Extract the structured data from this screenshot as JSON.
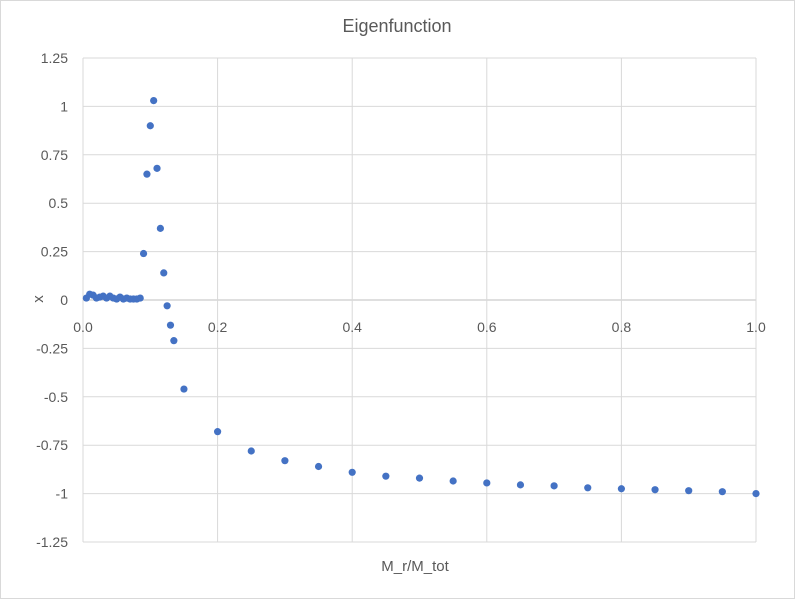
{
  "chart_data": {
    "type": "scatter",
    "title": "Eigenfunction",
    "xlabel": "M_r/M_tot",
    "ylabel": "x",
    "xlim": [
      0,
      1
    ],
    "ylim": [
      -1.25,
      1.25
    ],
    "x_ticks": [
      0,
      0.2,
      0.4,
      0.6,
      0.8,
      1.0
    ],
    "x_tick_labels": [
      "0.0",
      "0.2",
      "0.4",
      "0.6",
      "0.8",
      "1.0"
    ],
    "y_ticks": [
      1.25,
      1,
      0.75,
      0.5,
      0.25,
      0,
      -0.25,
      -0.5,
      -0.75,
      -1,
      -1.25
    ],
    "y_tick_labels": [
      "1.25",
      "1",
      "0.75",
      "0.5",
      "0.25",
      "0",
      "-0.25",
      "-0.5",
      "-0.75",
      "-1",
      "-1.25"
    ],
    "grid": true,
    "marker_color": "#4472C4",
    "series": [
      {
        "x": [
          0.005,
          0.01,
          0.015,
          0.02,
          0.025,
          0.03,
          0.035,
          0.04,
          0.045,
          0.05,
          0.055,
          0.06,
          0.065,
          0.07,
          0.075,
          0.08,
          0.085,
          0.09,
          0.095,
          0.1,
          0.105,
          0.11,
          0.115,
          0.12,
          0.125,
          0.13,
          0.135,
          0.15,
          0.2,
          0.25,
          0.3,
          0.35,
          0.4,
          0.45,
          0.5,
          0.55,
          0.6,
          0.65,
          0.7,
          0.75,
          0.8,
          0.85,
          0.9,
          0.95,
          1.0
        ],
        "y": [
          0.01,
          0.03,
          0.025,
          0.01,
          0.015,
          0.02,
          0.01,
          0.02,
          0.01,
          0.005,
          0.015,
          0.005,
          0.01,
          0.005,
          0.005,
          0.005,
          0.01,
          0.24,
          0.65,
          0.9,
          1.03,
          0.68,
          0.37,
          0.14,
          -0.03,
          -0.13,
          -0.21,
          -0.46,
          -0.68,
          -0.78,
          -0.83,
          -0.86,
          -0.89,
          -0.91,
          -0.92,
          -0.935,
          -0.945,
          -0.955,
          -0.96,
          -0.97,
          -0.975,
          -0.98,
          -0.985,
          -0.99,
          -1.0
        ]
      }
    ]
  }
}
